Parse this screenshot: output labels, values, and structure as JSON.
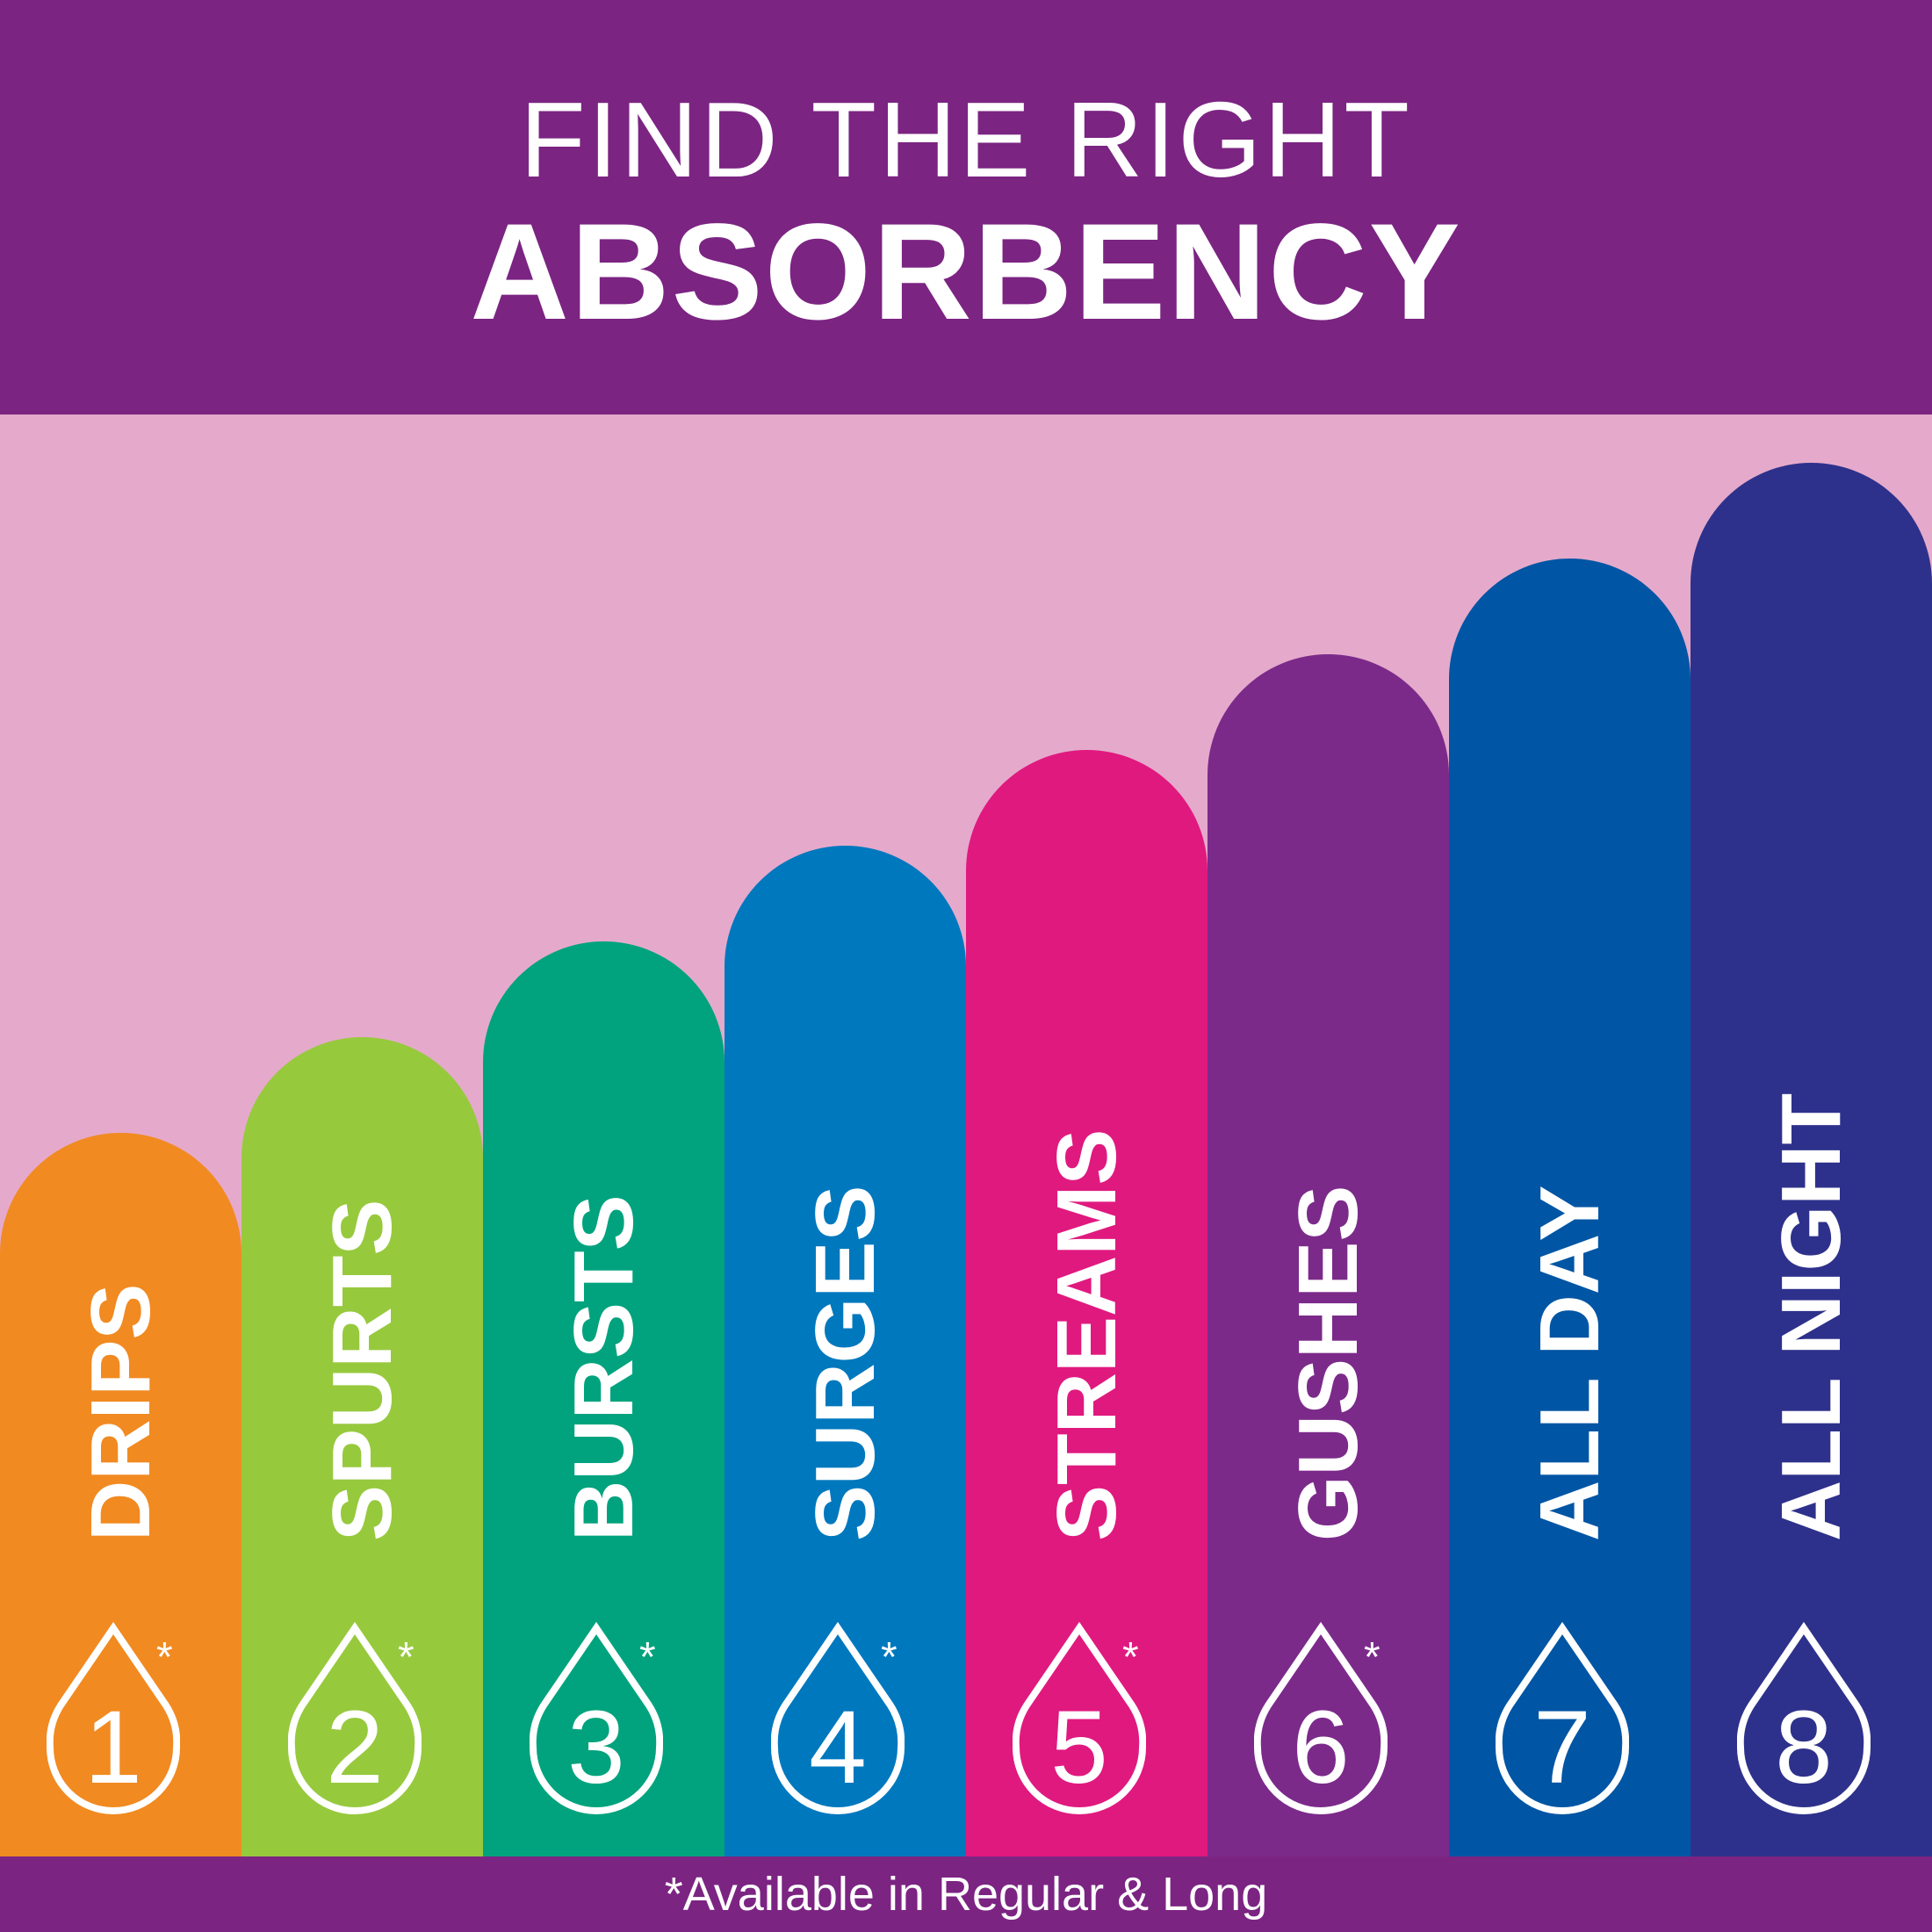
{
  "header": {
    "line1": "FIND THE RIGHT",
    "line2": "ABSORBENCY"
  },
  "colors": {
    "header": "#7B2482",
    "background": "#E5AACB"
  },
  "icon": "water-drop-icon",
  "levels": [
    {
      "level": "1",
      "name": "DRIPS",
      "color": "#F18A21",
      "asterisk": "*"
    },
    {
      "level": "2",
      "name": "SPURTS",
      "color": "#97C93D",
      "asterisk": "*"
    },
    {
      "level": "3",
      "name": "BURSTS",
      "color": "#00A37D",
      "asterisk": "*"
    },
    {
      "level": "4",
      "name": "SURGES",
      "color": "#0078BE",
      "asterisk": "*"
    },
    {
      "level": "5",
      "name": "STREAMS",
      "color": "#E0197F",
      "asterisk": "*"
    },
    {
      "level": "6",
      "name": "GUSHES",
      "color": "#7B2A8A",
      "asterisk": "*"
    },
    {
      "level": "7",
      "name": "ALL DAY",
      "color": "#0055A4",
      "asterisk": ""
    },
    {
      "level": "8",
      "name": "ALL NIGHT",
      "color": "#2E318B",
      "asterisk": ""
    }
  ],
  "footer": {
    "note": "*Available in Regular & Long"
  }
}
